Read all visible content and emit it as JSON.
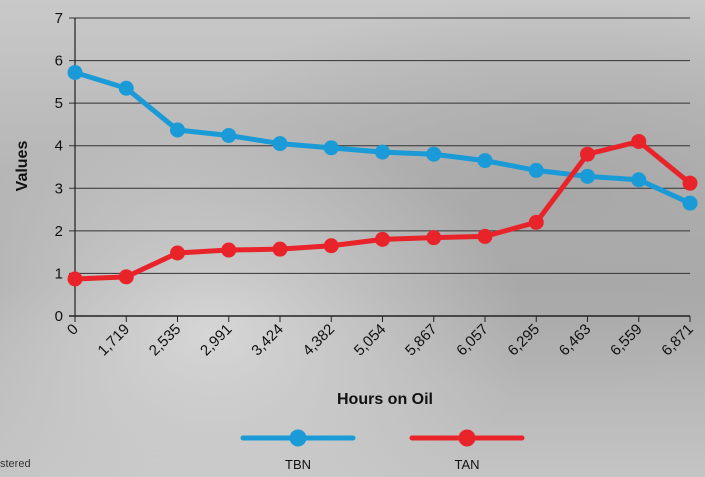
{
  "chart_data": {
    "type": "line",
    "categories": [
      "0",
      "1,719",
      "2,535",
      "2,991",
      "3,424",
      "4,382",
      "5,054",
      "5,867",
      "6,057",
      "6,295",
      "6,463",
      "6,559",
      "6,871"
    ],
    "series": [
      {
        "name": "TBN",
        "color": "#1a9bd7",
        "values": [
          5.72,
          5.35,
          4.37,
          4.24,
          4.05,
          3.95,
          3.85,
          3.8,
          3.65,
          3.42,
          3.28,
          3.2,
          2.65
        ]
      },
      {
        "name": "TAN",
        "color": "#e8242a",
        "values": [
          0.87,
          0.92,
          1.48,
          1.55,
          1.57,
          1.65,
          1.8,
          1.84,
          1.87,
          2.2,
          3.8,
          4.1,
          3.12
        ]
      }
    ],
    "xlabel": "Hours on Oil",
    "ylabel": "Values",
    "ylim": [
      0,
      7
    ],
    "yticks": [
      "0",
      "1",
      "2",
      "3",
      "4",
      "5",
      "6",
      "7"
    ],
    "grid": "horizontal",
    "legend_position": "bottom"
  },
  "footnote": "stered"
}
